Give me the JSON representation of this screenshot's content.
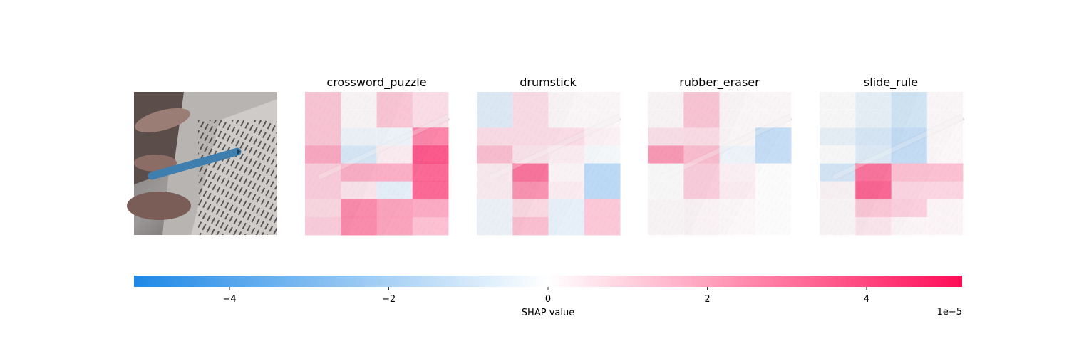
{
  "chart_data": {
    "type": "heatmap",
    "title": "",
    "panel_titles": [
      "",
      "crossword_puzzle",
      "drumstick",
      "rubber_eraser",
      "slide_rule"
    ],
    "input_image": "photo-hand-pen-reading-text",
    "grid_rows": 8,
    "grid_cols": 4,
    "value_scale": "1e-5",
    "heatmaps": [
      {
        "name": "crossword_puzzle",
        "values": [
          [
            1.4,
            0.1,
            1.4,
            0.8
          ],
          [
            1.4,
            0.1,
            1.4,
            0.8
          ],
          [
            1.4,
            -0.4,
            -0.4,
            3.2
          ],
          [
            2.2,
            -1.0,
            0.4,
            4.4
          ],
          [
            1.2,
            2.0,
            2.0,
            4.0
          ],
          [
            1.2,
            0.6,
            -0.7,
            4.0
          ],
          [
            0.9,
            3.0,
            2.4,
            2.2
          ],
          [
            1.2,
            3.0,
            2.4,
            1.6
          ]
        ]
      },
      {
        "name": "drumstick",
        "values": [
          [
            -0.8,
            0.8,
            0.1,
            0.1
          ],
          [
            -0.8,
            0.8,
            0.1,
            0.1
          ],
          [
            0.8,
            0.8,
            0.8,
            0.3
          ],
          [
            1.6,
            0.6,
            0.4,
            -0.2
          ],
          [
            0.4,
            3.6,
            0.2,
            -1.9
          ],
          [
            0.4,
            2.8,
            0.4,
            -1.9
          ],
          [
            -0.4,
            0.9,
            -0.6,
            1.4
          ],
          [
            -0.4,
            1.6,
            -0.6,
            1.4
          ]
        ]
      },
      {
        "name": "rubber_eraser",
        "values": [
          [
            0.1,
            1.4,
            0.1,
            0.1
          ],
          [
            0.1,
            1.4,
            0.1,
            0.1
          ],
          [
            0.7,
            0.8,
            0.1,
            -1.6
          ],
          [
            2.6,
            1.6,
            -0.4,
            -1.6
          ],
          [
            0.0,
            1.2,
            0.3,
            0.0
          ],
          [
            0.0,
            1.2,
            0.4,
            0.0
          ],
          [
            0.1,
            0.2,
            0.1,
            0.0
          ],
          [
            0.1,
            0.2,
            0.1,
            0.0
          ]
        ]
      },
      {
        "name": "slide_rule",
        "values": [
          [
            0.0,
            -0.5,
            -1.2,
            0.1
          ],
          [
            0.0,
            -0.5,
            -1.2,
            0.1
          ],
          [
            -0.5,
            -1.0,
            -1.6,
            0.1
          ],
          [
            0.0,
            -0.8,
            -1.6,
            0.1
          ],
          [
            -1.1,
            3.6,
            1.6,
            1.6
          ],
          [
            0.2,
            4.0,
            1.0,
            1.0
          ],
          [
            0.1,
            1.4,
            1.2,
            0.2
          ],
          [
            0.1,
            0.6,
            0.2,
            0.2
          ]
        ]
      }
    ],
    "colorbar": {
      "label": "SHAP value",
      "range": [
        -5.2,
        5.2
      ],
      "ticks": [
        -4,
        -2,
        0,
        2,
        4
      ],
      "tick_labels": [
        "−4",
        "−2",
        "0",
        "2",
        "4"
      ],
      "offset_text": "1e−5",
      "negative_color": "#1e88e5",
      "positive_color": "#ff0d57"
    }
  }
}
